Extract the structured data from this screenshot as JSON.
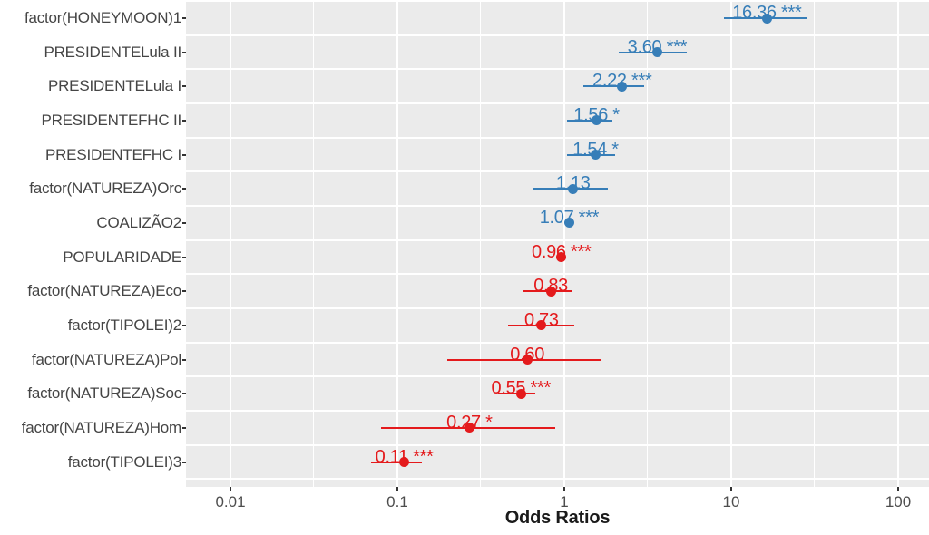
{
  "chart_data": {
    "type": "scatter",
    "subtype": "forest-plot-odds-ratios",
    "title": "",
    "xlabel": "Odds Ratios",
    "ylabel": "",
    "x_scale": "log10",
    "xlim": [
      0.0054,
      150
    ],
    "x_ticks": [
      0.01,
      0.1,
      1,
      10,
      100
    ],
    "x_tick_labels": [
      "0.01",
      "0.1",
      "1",
      "10",
      "100"
    ],
    "grid": "major and minor, white on gray panel",
    "legend_position": "none",
    "value_label_format": "2 decimals plus significance stars",
    "points": [
      {
        "term": "factor(HONEYMOON)1",
        "odds_ratio": 16.36,
        "ci_low": 9.0,
        "ci_high": 28.5,
        "significance": "***",
        "group": "positive"
      },
      {
        "term": "PRESIDENTELula II",
        "odds_ratio": 3.6,
        "ci_low": 2.12,
        "ci_high": 5.42,
        "significance": "***",
        "group": "positive"
      },
      {
        "term": "PRESIDENTELula I",
        "odds_ratio": 2.22,
        "ci_low": 1.3,
        "ci_high": 3.01,
        "significance": "***",
        "group": "positive"
      },
      {
        "term": "PRESIDENTEFHC II",
        "odds_ratio": 1.56,
        "ci_low": 1.04,
        "ci_high": 1.94,
        "significance": "*",
        "group": "positive"
      },
      {
        "term": "PRESIDENTEFHC I",
        "odds_ratio": 1.54,
        "ci_low": 1.04,
        "ci_high": 2.01,
        "significance": "*",
        "group": "positive"
      },
      {
        "term": "factor(NATUREZA)Orc",
        "odds_ratio": 1.13,
        "ci_low": 0.65,
        "ci_high": 1.82,
        "significance": "",
        "group": "positive"
      },
      {
        "term": "COALIZÃO2",
        "odds_ratio": 1.07,
        "ci_low": 1.02,
        "ci_high": 1.13,
        "significance": "***",
        "group": "positive"
      },
      {
        "term": "POPULARIDADE",
        "odds_ratio": 0.96,
        "ci_low": 0.94,
        "ci_high": 0.98,
        "significance": "***",
        "group": "negative"
      },
      {
        "term": "factor(NATUREZA)Eco",
        "odds_ratio": 0.83,
        "ci_low": 0.57,
        "ci_high": 1.1,
        "significance": "",
        "group": "negative"
      },
      {
        "term": "factor(TIPOLEI)2",
        "odds_ratio": 0.73,
        "ci_low": 0.46,
        "ci_high": 1.15,
        "significance": "",
        "group": "negative"
      },
      {
        "term": "factor(NATUREZA)Pol",
        "odds_ratio": 0.6,
        "ci_low": 0.2,
        "ci_high": 1.67,
        "significance": "",
        "group": "negative"
      },
      {
        "term": "factor(NATUREZA)Soc",
        "odds_ratio": 0.55,
        "ci_low": 0.4,
        "ci_high": 0.67,
        "significance": "***",
        "group": "negative"
      },
      {
        "term": "factor(NATUREZA)Hom",
        "odds_ratio": 0.27,
        "ci_low": 0.08,
        "ci_high": 0.88,
        "significance": "*",
        "group": "negative"
      },
      {
        "term": "factor(TIPOLEI)3",
        "odds_ratio": 0.11,
        "ci_low": 0.07,
        "ci_high": 0.14,
        "significance": "***",
        "group": "negative"
      }
    ]
  },
  "colors": {
    "positive": "#377EB8",
    "negative": "#E41A1C",
    "panel_background": "#EBEBEB",
    "gridline": "#FFFFFF",
    "axis_text": "#4D4D4D",
    "term_label_text": "#454545",
    "axis_title_text": "#1A1A1A"
  },
  "layout_hints": {
    "minor_grid_ticks": [
      0.0316,
      0.316,
      3.16,
      31.6
    ]
  }
}
